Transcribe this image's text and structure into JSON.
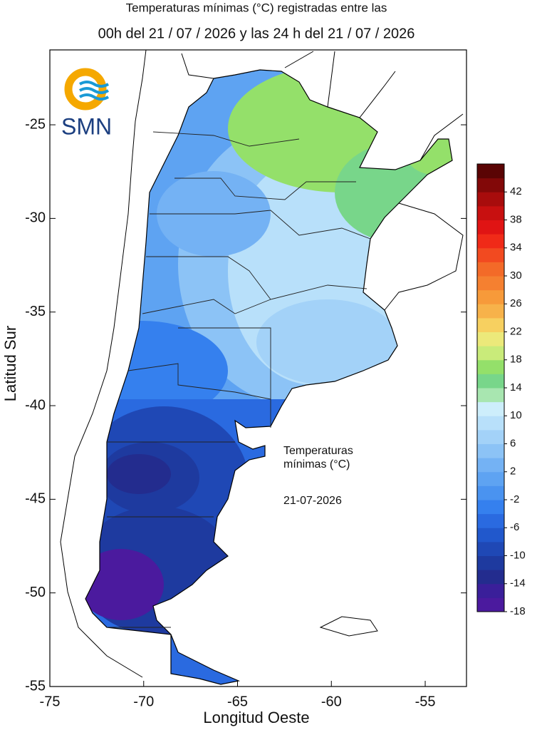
{
  "chart_data": {
    "type": "contour_map",
    "title": [
      "Temperaturas mínimas (°C) registradas entre las",
      "00h del 21 / 07 / 2026 y las 24 h del 21 / 07 / 2026"
    ],
    "x_label": "Longitud Oeste",
    "y_label": "Latitud Sur",
    "xlim": [
      -75,
      -52.8
    ],
    "ylim": [
      -55,
      -21
    ],
    "xticks": [
      -75,
      -70,
      -65,
      -60,
      -55
    ],
    "yticks": [
      -25,
      -30,
      -35,
      -40,
      -45,
      -50,
      -55
    ],
    "annotation": [
      "Temperaturas",
      "mínimas (°C)"
    ],
    "date": "21-07-2026",
    "logo": "SMN",
    "colorbar": {
      "lim": [
        -18,
        46
      ],
      "ticks": [
        -18,
        -14,
        -10,
        -6,
        -2,
        2,
        6,
        10,
        14,
        18,
        22,
        26,
        30,
        34,
        38,
        42
      ],
      "colors": [
        "#4b1a9e",
        "#3a1f9a",
        "#232c8e",
        "#1e3a9f",
        "#1f48b5",
        "#2158cc",
        "#2a6ae0",
        "#3580ee",
        "#4a93f0",
        "#5ea3f2",
        "#74b2f4",
        "#8cc3f6",
        "#a3d2f8",
        "#b8e0fa",
        "#cdeefb",
        "#a8e6b0",
        "#78d68a",
        "#94e06a",
        "#c9eb7a",
        "#ece97a",
        "#f7d060",
        "#f7b24a",
        "#f79a3a",
        "#f58030",
        "#f36a28",
        "#f24a20",
        "#f02a18",
        "#e01414",
        "#c81010",
        "#a80c0c",
        "#820808",
        "#5a0404"
      ]
    }
  }
}
